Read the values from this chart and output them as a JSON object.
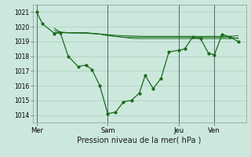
{
  "xlabel": "Pression niveau de la mer( hPa )",
  "bg_color": "#cce8dd",
  "grid_color": "#aaccbb",
  "line_color": "#1a6b1a",
  "marker_color": "#1a6b1a",
  "ylim": [
    1013.5,
    1021.5
  ],
  "yticks": [
    1014,
    1015,
    1016,
    1017,
    1018,
    1019,
    1020,
    1021
  ],
  "day_labels": [
    "Mer",
    "Sam",
    "Jeu",
    "Ven"
  ],
  "vline_x": [
    0,
    36,
    72,
    90
  ],
  "series1": {
    "x": [
      0,
      3,
      9,
      12,
      16,
      21,
      25,
      28,
      32,
      36,
      40,
      44,
      48,
      52,
      55,
      59,
      63,
      67,
      72,
      75,
      79,
      83,
      87,
      90,
      94,
      98,
      102
    ],
    "y": [
      1021.0,
      1020.2,
      1019.55,
      1019.6,
      1018.0,
      1017.3,
      1017.4,
      1017.1,
      1016.0,
      1014.1,
      1014.2,
      1014.9,
      1015.0,
      1015.5,
      1016.7,
      1015.8,
      1016.5,
      1018.3,
      1018.4,
      1018.5,
      1019.3,
      1019.2,
      1018.2,
      1018.1,
      1019.5,
      1019.3,
      1019.0
    ]
  },
  "series2": {
    "x": [
      9,
      12,
      16,
      25,
      32,
      36,
      40,
      44,
      48,
      52,
      55,
      59,
      63,
      67,
      72,
      75,
      79,
      83,
      87,
      94,
      98,
      102
    ],
    "y": [
      1019.6,
      1019.6,
      1019.6,
      1019.6,
      1019.5,
      1019.4,
      1019.35,
      1019.3,
      1019.3,
      1019.3,
      1019.3,
      1019.3,
      1019.3,
      1019.3,
      1019.3,
      1019.3,
      1019.3,
      1019.3,
      1019.3,
      1019.3,
      1019.3,
      1019.2
    ]
  },
  "series3": {
    "x": [
      9,
      12,
      16,
      25,
      32,
      36,
      40,
      44,
      48,
      52,
      55,
      59,
      63,
      67,
      72,
      75,
      79,
      83,
      87,
      94,
      98,
      102
    ],
    "y": [
      1019.9,
      1019.65,
      1019.6,
      1019.58,
      1019.52,
      1019.47,
      1019.42,
      1019.4,
      1019.38,
      1019.36,
      1019.35,
      1019.35,
      1019.35,
      1019.35,
      1019.35,
      1019.35,
      1019.35,
      1019.35,
      1019.35,
      1019.35,
      1019.35,
      1019.4
    ]
  },
  "series4": {
    "x": [
      9,
      12,
      16,
      25,
      32,
      36,
      40,
      44,
      48,
      52,
      55,
      59,
      63,
      67,
      72,
      75,
      79,
      83,
      87,
      94,
      98,
      102
    ],
    "y": [
      1019.75,
      1019.62,
      1019.58,
      1019.56,
      1019.5,
      1019.42,
      1019.35,
      1019.28,
      1019.22,
      1019.2,
      1019.2,
      1019.2,
      1019.2,
      1019.2,
      1019.2,
      1019.2,
      1019.2,
      1019.2,
      1019.2,
      1019.2,
      1019.2,
      1019.25
    ]
  },
  "xlim": [
    -2,
    106
  ],
  "xtick_positions": [
    0,
    36,
    72,
    90
  ],
  "xtick_labels": [
    "Mer",
    "Sam",
    "Jeu",
    "Ven"
  ]
}
